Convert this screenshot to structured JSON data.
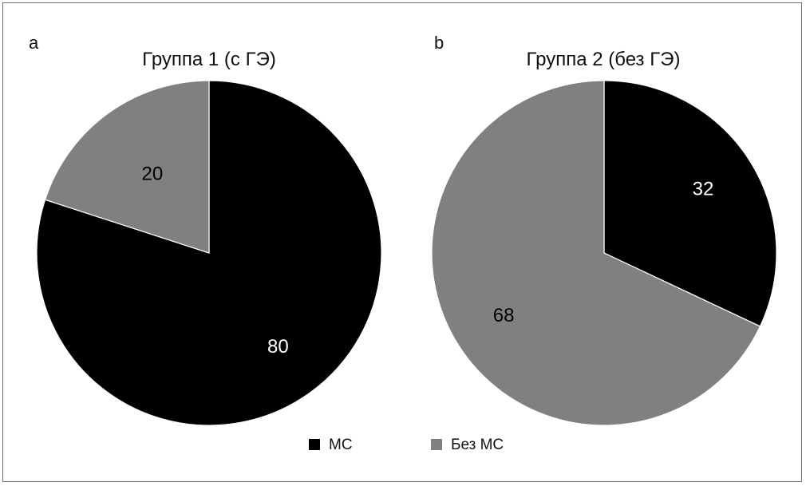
{
  "chart_data": [
    {
      "type": "pie",
      "panel_letter": "a",
      "title": "Группа 1 (с ГЭ)",
      "categories": [
        "МС",
        "Без МС"
      ],
      "values": [
        80,
        20
      ],
      "data_labels": [
        "80",
        "20"
      ],
      "colors": [
        "#000000",
        "#808080"
      ],
      "label_colors": [
        "#ffffff",
        "#000000"
      ],
      "start_angle_deg": 0,
      "direction": "clockwise"
    },
    {
      "type": "pie",
      "panel_letter": "b",
      "title": "Группа 2 (без ГЭ)",
      "categories": [
        "МС",
        "Без МС"
      ],
      "values": [
        32,
        68
      ],
      "data_labels": [
        "32",
        "68"
      ],
      "colors": [
        "#000000",
        "#808080"
      ],
      "label_colors": [
        "#ffffff",
        "#000000"
      ],
      "start_angle_deg": 0,
      "direction": "clockwise"
    }
  ],
  "legend": {
    "placement": "bottom-center",
    "items": [
      {
        "label": "МС",
        "color": "#000000"
      },
      {
        "label": "Без МС",
        "color": "#808080"
      }
    ]
  }
}
